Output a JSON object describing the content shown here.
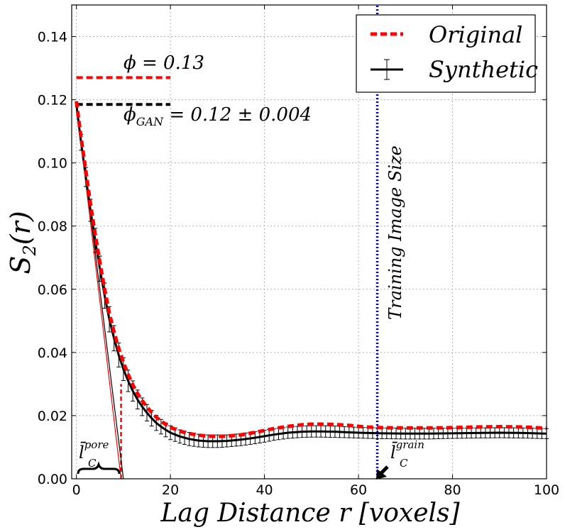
{
  "chart_data": {
    "type": "line",
    "xlabel": "Lag Distance r [voxels]",
    "ylabel": "S2(r)",
    "xlim": [
      -1,
      100
    ],
    "ylim": [
      0,
      0.15
    ],
    "grid": true,
    "legend_position": "top-right",
    "x_ticks": [
      "0",
      "20",
      "40",
      "60",
      "80",
      "100"
    ],
    "y_ticks": [
      "0.00",
      "0.02",
      "0.04",
      "0.06",
      "0.08",
      "0.10",
      "0.12",
      "0.14"
    ],
    "series": [
      {
        "name": "Original",
        "color": "#ff0000",
        "style": "dashed",
        "x": [
          0,
          1,
          2,
          3,
          4,
          5,
          6,
          7,
          8,
          9,
          10,
          11,
          12,
          13,
          14,
          15,
          16,
          17,
          18,
          19,
          20,
          22,
          24,
          26,
          28,
          30,
          32,
          35,
          38,
          40,
          42,
          45,
          48,
          50,
          52,
          55,
          58,
          60,
          62,
          65,
          70,
          75,
          80,
          85,
          90,
          95,
          100
        ],
        "y": [
          0.1195,
          0.108,
          0.0975,
          0.087,
          0.0775,
          0.0685,
          0.06,
          0.0525,
          0.0465,
          0.0413,
          0.0368,
          0.033,
          0.0297,
          0.027,
          0.0247,
          0.0227,
          0.021,
          0.0195,
          0.0183,
          0.0172,
          0.0163,
          0.0151,
          0.0143,
          0.0138,
          0.0135,
          0.0134,
          0.0135,
          0.0139,
          0.0147,
          0.0153,
          0.0159,
          0.0166,
          0.0171,
          0.0173,
          0.0173,
          0.0172,
          0.0169,
          0.0166,
          0.0164,
          0.0162,
          0.0161,
          0.0161,
          0.0162,
          0.0164,
          0.0165,
          0.0164,
          0.016
        ]
      },
      {
        "name": "Synthetic",
        "color": "#000000",
        "style": "solid",
        "x": [
          0,
          1,
          2,
          3,
          4,
          5,
          6,
          7,
          8,
          9,
          10,
          11,
          12,
          13,
          14,
          15,
          16,
          17,
          18,
          19,
          20,
          22,
          24,
          26,
          28,
          30,
          32,
          35,
          38,
          40,
          42,
          45,
          48,
          50,
          52,
          55,
          58,
          60,
          62,
          65,
          70,
          75,
          80,
          85,
          90,
          95,
          100
        ],
        "y": [
          0.1185,
          0.1065,
          0.0955,
          0.085,
          0.0755,
          0.0665,
          0.058,
          0.0505,
          0.0445,
          0.0392,
          0.0347,
          0.031,
          0.0278,
          0.0251,
          0.0228,
          0.0209,
          0.0192,
          0.0177,
          0.0165,
          0.0155,
          0.0146,
          0.0134,
          0.0126,
          0.0121,
          0.0119,
          0.0119,
          0.012,
          0.0124,
          0.013,
          0.0135,
          0.014,
          0.0146,
          0.0149,
          0.015,
          0.015,
          0.0149,
          0.0147,
          0.0146,
          0.0145,
          0.0144,
          0.0143,
          0.0143,
          0.0144,
          0.0145,
          0.0146,
          0.0145,
          0.0143
        ],
        "error": [
          0.0005,
          0.0025,
          0.003,
          0.0035,
          0.0038,
          0.004,
          0.004,
          0.004,
          0.004,
          0.0038,
          0.0036,
          0.0034,
          0.0032,
          0.003,
          0.0028,
          0.0026,
          0.0025,
          0.0024,
          0.0023,
          0.0022,
          0.0022,
          0.0021,
          0.0021,
          0.002,
          0.002,
          0.002,
          0.0019,
          0.0019,
          0.0019,
          0.0019,
          0.0018,
          0.0018,
          0.0018,
          0.0018,
          0.0018,
          0.0018,
          0.0017,
          0.0017,
          0.0017,
          0.0017,
          0.0017,
          0.0017,
          0.0016,
          0.0016,
          0.0016,
          0.0016,
          0.0016
        ]
      }
    ],
    "reference_lines": [
      {
        "type": "horizontal",
        "y": 0.127,
        "x_range": [
          0,
          20
        ],
        "color": "#ff0000",
        "style": "dashed"
      },
      {
        "type": "horizontal",
        "y": 0.1185,
        "x_range": [
          0,
          20
        ],
        "color": "#000000",
        "style": "dashed"
      },
      {
        "type": "vertical",
        "x": 64,
        "color": "#0000cc",
        "style": "dotted"
      },
      {
        "type": "vertical",
        "x": 9.5,
        "y_range": [
          0,
          0.03
        ],
        "color": "#ff0000",
        "style": "dashed"
      },
      {
        "type": "tangent",
        "from": [
          0,
          0.1195
        ],
        "to": [
          10,
          0
        ],
        "color": "#000000"
      },
      {
        "type": "tangent",
        "from": [
          0,
          0.1185
        ],
        "to": [
          9.5,
          0
        ],
        "color": "#ff0000"
      }
    ],
    "annotations": {
      "phi": "ϕ = 0.13",
      "phi_gan_base": "ϕ",
      "phi_gan_sub": "GAN",
      "phi_gan_rest": " = 0.12 ± 0.004",
      "training_size": "Training Image Size",
      "lc_pore_base": "l̄",
      "lc_pore_sub": "C",
      "lc_pore_sup": "pore",
      "lc_grain_base": "l̄",
      "lc_grain_sub": "C",
      "lc_grain_sup": "grain"
    }
  }
}
